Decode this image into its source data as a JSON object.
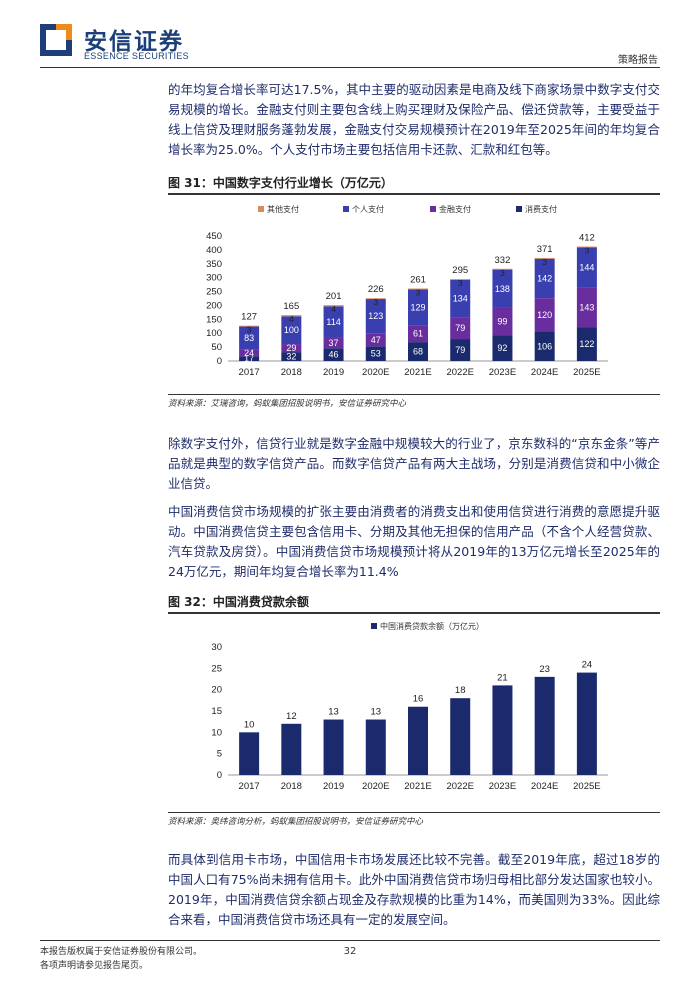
{
  "header": {
    "logo_cn": "安信证券",
    "logo_en": "ESSENCE SECURITIES",
    "report_type": "策略报告"
  },
  "paragraphs": {
    "p1": "的年均复合增长率可达17.5%，其中主要的驱动因素是电商及线下商家场景中数字支付交易规模的增长。金融支付则主要包含线上购买理财及保险产品、偿还贷款等，主要受益于线上信贷及理财服务蓬勃发展，金融支付交易规模预计在2019年至2025年间的年均复合增长率为25.0%。个人支付市场主要包括信用卡还款、汇款和红包等。",
    "p2": "除数字支付外，信贷行业就是数字金融中规模较大的行业了，京东数科的“京东金条”等产品就是典型的数字信贷产品。而数字信贷产品有两大主战场，分别是消费信贷和中小微企业信贷。",
    "p3": "中国消费信贷市场规模的扩张主要由消费者的消费支出和使用信贷进行消费的意愿提升驱动。中国消费信贷主要包含信用卡、分期及其他无担保的信用产品（不含个人经营贷款、汽车贷款及房贷）。中国消费信贷市场规模预计将从2019年的13万亿元增长至2025年的24万亿元，期间年均复合增长率为11.4%",
    "p4": "而具体到信用卡市场，中国信用卡市场发展还比较不完善。截至2019年底，超过18岁的中国人口有75%尚未拥有信用卡。此外中国消费信贷市场归母相比部分发达国家也较小。2019年，中国消费信贷余额占现金及存款规模的比重为14%，而美国则为33%。因此综合来看，中国消费信贷市场还具有一定的发展空间。"
  },
  "figure31": {
    "title": "图 31：中国数字支付行业增长（万亿元）",
    "source": "资料来源：艾瑞咨询，蚂蚁集团招股说明书，安信证券研究中心"
  },
  "figure32": {
    "title": "图 32：中国消费贷款余额",
    "source": "资料来源：奥纬咨询分析，蚂蚁集团招股说明书，安信证券研究中心"
  },
  "footer": {
    "line1": "本报告版权属于安信证券股份有限公司。",
    "line2": "各项声明请参见报告尾页。",
    "page": "32"
  },
  "colors": {
    "consumer": "#1a2a6c",
    "financial": "#6a2d9e",
    "personal": "#3a3fb0",
    "other": "#d98a5a",
    "brand": "#1c3f7a"
  },
  "chart_data": [
    {
      "type": "bar",
      "stacked": true,
      "categories": [
        "2017",
        "2018",
        "2019",
        "2020E",
        "2021E",
        "2022E",
        "2023E",
        "2024E",
        "2025E"
      ],
      "series": [
        {
          "name": "消费支付",
          "values": [
            17,
            32,
            46,
            53,
            68,
            79,
            92,
            106,
            122
          ]
        },
        {
          "name": "金融支付",
          "values": [
            24,
            29,
            37,
            47,
            61,
            79,
            99,
            120,
            143
          ]
        },
        {
          "name": "个人支付",
          "values": [
            83,
            100,
            114,
            123,
            129,
            134,
            138,
            142,
            144
          ]
        },
        {
          "name": "其他支付",
          "values": [
            3,
            4,
            4,
            3,
            3,
            3,
            3,
            3,
            3
          ]
        }
      ],
      "totals": [
        127,
        165,
        201,
        226,
        261,
        295,
        332,
        371,
        412
      ],
      "ylim": [
        0,
        450
      ],
      "yticks": [
        0,
        50,
        100,
        150,
        200,
        250,
        300,
        350,
        400,
        450
      ],
      "legend_order": [
        "其他支付",
        "个人支付",
        "金融支付",
        "消费支付"
      ],
      "legend_position": "top"
    },
    {
      "type": "bar",
      "categories": [
        "2017",
        "2018",
        "2019",
        "2020E",
        "2021E",
        "2022E",
        "2023E",
        "2024E",
        "2025E"
      ],
      "series": [
        {
          "name": "中国消费贷款余额（万亿元）",
          "values": [
            10,
            12,
            13,
            13,
            16,
            18,
            21,
            23,
            24
          ]
        }
      ],
      "ylim": [
        0,
        30
      ],
      "yticks": [
        0,
        5,
        10,
        15,
        20,
        25,
        30
      ],
      "legend_position": "top"
    }
  ]
}
